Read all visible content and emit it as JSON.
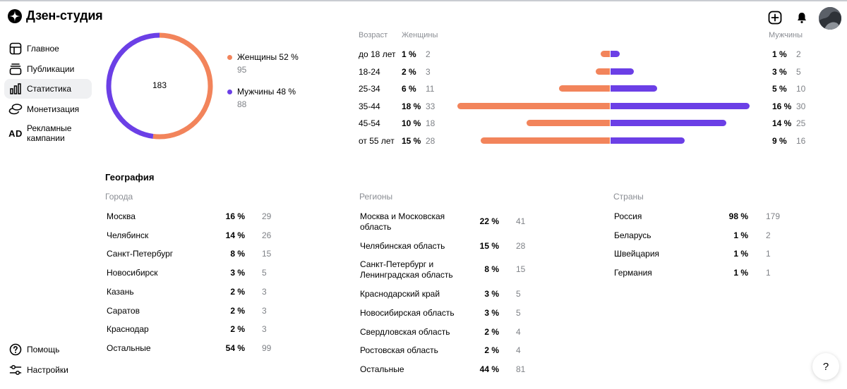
{
  "app": {
    "title": "Дзен-студия"
  },
  "sidebar": {
    "items": [
      {
        "label": "Главное",
        "icon": "home-grid-icon"
      },
      {
        "label": "Публикации",
        "icon": "publications-stack-icon"
      },
      {
        "label": "Статистика",
        "icon": "bar-chart-icon",
        "active": true
      },
      {
        "label": "Монетизация",
        "icon": "coins-icon"
      },
      {
        "label": "Рекламные кампании",
        "icon": "ad-text-icon",
        "icon_text": "AD"
      }
    ],
    "bottom": [
      {
        "label": "Помощь",
        "icon": "help-circle-icon"
      },
      {
        "label": "Настройки",
        "icon": "settings-sliders-icon"
      }
    ]
  },
  "header": {
    "add_icon": "plus-square-icon",
    "bell_icon": "bell-icon"
  },
  "gender": {
    "total": "183",
    "women": {
      "label": "Женщины 52 %",
      "count": "95",
      "share": 0.52,
      "color": "#f2845b"
    },
    "men": {
      "label": "Мужчины 48 %",
      "count": "88",
      "share": 0.48,
      "color": "#6b3fe6"
    }
  },
  "age": {
    "headers": {
      "age": "Возраст",
      "women": "Женщины",
      "men": "Мужчины"
    },
    "rows": [
      {
        "cat": "до 18 лет",
        "f_pct": "1 %",
        "f_cnt": "2",
        "m_pct": "1 %",
        "m_cnt": "2",
        "f": 2,
        "m": 2
      },
      {
        "cat": "18-24",
        "f_pct": "2 %",
        "f_cnt": "3",
        "m_pct": "3 %",
        "m_cnt": "5",
        "f": 3,
        "m": 5
      },
      {
        "cat": "25-34",
        "f_pct": "6 %",
        "f_cnt": "11",
        "m_pct": "5 %",
        "m_cnt": "10",
        "f": 11,
        "m": 10
      },
      {
        "cat": "35-44",
        "f_pct": "18 %",
        "f_cnt": "33",
        "m_pct": "16 %",
        "m_cnt": "30",
        "f": 33,
        "m": 30
      },
      {
        "cat": "45-54",
        "f_pct": "10 %",
        "f_cnt": "18",
        "m_pct": "14 %",
        "m_cnt": "25",
        "f": 18,
        "m": 25
      },
      {
        "cat": "от 55 лет",
        "f_pct": "15 %",
        "f_cnt": "28",
        "m_pct": "9 %",
        "m_cnt": "16",
        "f": 28,
        "m": 16
      }
    ]
  },
  "geo": {
    "title": "География",
    "cities": {
      "header": "Города",
      "rows": [
        {
          "name": "Москва",
          "pct": "16 %",
          "cnt": "29"
        },
        {
          "name": "Челябинск",
          "pct": "14 %",
          "cnt": "26"
        },
        {
          "name": "Санкт-Петербург",
          "pct": "8 %",
          "cnt": "15"
        },
        {
          "name": "Новосибирск",
          "pct": "3 %",
          "cnt": "5"
        },
        {
          "name": "Казань",
          "pct": "2 %",
          "cnt": "3"
        },
        {
          "name": "Саратов",
          "pct": "2 %",
          "cnt": "3"
        },
        {
          "name": "Краснодар",
          "pct": "2 %",
          "cnt": "3"
        },
        {
          "name": "Остальные",
          "pct": "54 %",
          "cnt": "99"
        }
      ]
    },
    "regions": {
      "header": "Регионы",
      "rows": [
        {
          "name": "Москва и Московская область",
          "pct": "22 %",
          "cnt": "41"
        },
        {
          "name": "Челябинская область",
          "pct": "15 %",
          "cnt": "28"
        },
        {
          "name": "Санкт-Петербург и Ленинградская область",
          "pct": "8 %",
          "cnt": "15"
        },
        {
          "name": "Краснодарский край",
          "pct": "3 %",
          "cnt": "5"
        },
        {
          "name": "Новосибирская область",
          "pct": "3 %",
          "cnt": "5"
        },
        {
          "name": "Свердловская область",
          "pct": "2 %",
          "cnt": "4"
        },
        {
          "name": "Ростовская область",
          "pct": "2 %",
          "cnt": "4"
        },
        {
          "name": "Остальные",
          "pct": "44 %",
          "cnt": "81"
        }
      ]
    },
    "countries": {
      "header": "Страны",
      "rows": [
        {
          "name": "Россия",
          "pct": "98 %",
          "cnt": "179"
        },
        {
          "name": "Беларусь",
          "pct": "1 %",
          "cnt": "2"
        },
        {
          "name": "Швейцария",
          "pct": "1 %",
          "cnt": "1"
        },
        {
          "name": "Германия",
          "pct": "1 %",
          "cnt": "1"
        }
      ]
    }
  },
  "help_fab": {
    "label": "?"
  }
}
